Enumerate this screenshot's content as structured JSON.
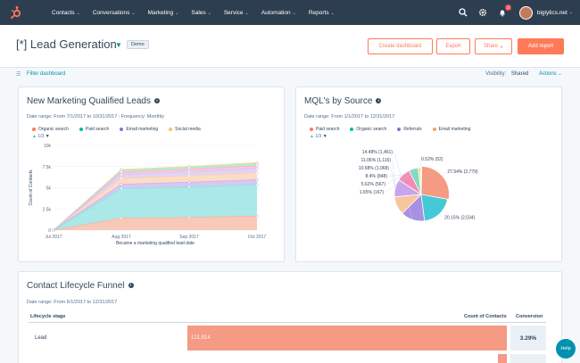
{
  "nav": {
    "items": [
      "Contacts",
      "Conversations",
      "Marketing",
      "Sales",
      "Service",
      "Automation",
      "Reports"
    ],
    "account": "biglytics.net",
    "notification_count": "3"
  },
  "header": {
    "title": "[*] Lead Generation",
    "tag": "Demo",
    "buttons": {
      "create": "Create dashboard",
      "export": "Export",
      "share": "Share",
      "add": "Add report"
    }
  },
  "filterbar": {
    "filter": "Filter dashboard",
    "visibility_label": "Visibility:",
    "visibility_value": "Shared",
    "actions": "Actions"
  },
  "colors": {
    "orange": "#ff7a59",
    "teal": "#00bda5",
    "blue": "#4fb0e2",
    "purple": "#a88ce0",
    "peach": "#f5c26b",
    "pink": "#f2547d",
    "navy": "#2d3e50"
  },
  "card1": {
    "title": "New Marketing Qualified Leads",
    "daterange": "Date range: From 7/1/2017 to 10/31/2017",
    "frequency": "Frequency: Monthly",
    "pager": "1/3",
    "legend": [
      "Organic search",
      "Paid search",
      "Email marketing",
      "Social media"
    ]
  },
  "card2": {
    "title": "MQL's by Source",
    "daterange": "Date range: From 1/1/2017 to 12/31/2017",
    "pager": "1/3",
    "legend": [
      "Paid search",
      "Organic search",
      "Referrals",
      "Email marketing"
    ]
  },
  "card3": {
    "title": "Contact Lifecycle Funnel",
    "daterange": "Date range: From 6/1/2017 to 12/31/2017",
    "col_stage": "Lifecycle stage",
    "col_count": "Count of Contacts",
    "col_conversion": "Conversion",
    "rows": [
      {
        "stage": "Lead",
        "count": "121,914",
        "conversion": "3.29%"
      }
    ]
  },
  "help": "Help",
  "chart_data": [
    {
      "type": "area",
      "title": "New Marketing Qualified Leads",
      "xlabel": "Became a marketing qualified lead date",
      "ylabel": "Count of Contacts",
      "x": [
        "Jul 2017",
        "Aug 2017",
        "Sep 2017",
        "Oct 2017"
      ],
      "yticks": [
        "0",
        "2.5k",
        "5k",
        "7.5k",
        "10k"
      ],
      "ylim": [
        0,
        10000
      ],
      "stacked": true,
      "series": [
        {
          "name": "Organic search",
          "color": "#f5b5a0",
          "values": [
            0,
            1400,
            1500,
            1650
          ]
        },
        {
          "name": "Paid search",
          "color": "#8fe0e0",
          "values": [
            0,
            3500,
            3600,
            3700
          ]
        },
        {
          "name": "Email marketing",
          "color": "#c9b6ef",
          "values": [
            0,
            500,
            550,
            600
          ]
        },
        {
          "name": "Social media",
          "color": "#fbd1b0",
          "values": [
            0,
            700,
            750,
            800
          ]
        },
        {
          "name": "",
          "color": "#d8c6f2",
          "values": [
            0,
            450,
            480,
            500
          ]
        },
        {
          "name": "",
          "color": "#f6b6d2",
          "values": [
            0,
            300,
            320,
            350
          ]
        },
        {
          "name": "",
          "color": "#a8e6c8",
          "values": [
            0,
            200,
            220,
            250
          ]
        },
        {
          "name": "",
          "color": "#f5df9c",
          "values": [
            0,
            100,
            110,
            120
          ]
        }
      ]
    },
    {
      "type": "pie",
      "title": "MQL's by Source",
      "slices": [
        {
          "label": "27.54% (2,779)",
          "value": 27.54,
          "color": "#f59a83"
        },
        {
          "label": "20.15% (2,034)",
          "value": 20.15,
          "color": "#45c9d6"
        },
        {
          "label": "14.48% (1,461)",
          "value": 14.48,
          "color": "#a890e3"
        },
        {
          "label": "11.06% (1,116)",
          "value": 11.06,
          "color": "#f8c59c"
        },
        {
          "label": "10.58% (1,068)",
          "value": 10.58,
          "color": "#c7a6ee"
        },
        {
          "label": "8.4% (848)",
          "value": 8.4,
          "color": "#f48bb6"
        },
        {
          "label": "5.62% (567)",
          "value": 5.62,
          "color": "#7fdbc1"
        },
        {
          "label": "1.65% (167)",
          "value": 1.65,
          "color": "#f4dd7d"
        },
        {
          "label": "0.52% (52)",
          "value": 0.52,
          "color": "#6aa8e8"
        }
      ]
    }
  ]
}
